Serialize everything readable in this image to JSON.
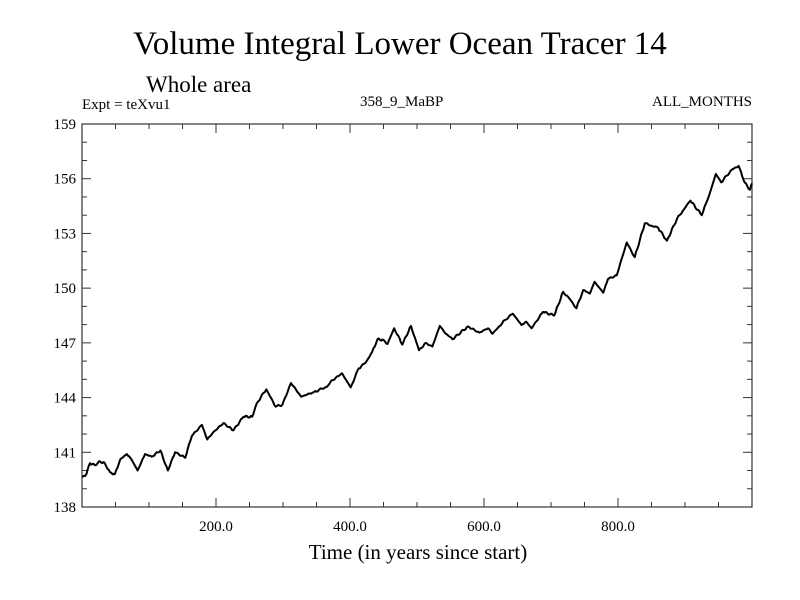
{
  "chart_data": {
    "type": "line",
    "title": "Volume Integral Lower Ocean Tracer 14",
    "subtitle": "Whole area",
    "annotations": {
      "left": "Expt = teXvu1",
      "center": "358_9_MaBP",
      "right": "ALL_MONTHS"
    },
    "xlabel": "Time (in years since start)",
    "ylabel": "",
    "xlim": [
      0,
      1000
    ],
    "ylim": [
      138,
      159
    ],
    "xticks": [
      200,
      400,
      600,
      800
    ],
    "xtick_labels": [
      "200.0",
      "400.0",
      "600.0",
      "800.0"
    ],
    "xminor_step": 50,
    "yticks": [
      138,
      141,
      144,
      147,
      150,
      153,
      156,
      159
    ],
    "ytick_labels": [
      "138",
      "141",
      "144",
      "147",
      "150",
      "153",
      "156",
      "159"
    ],
    "yminor_step": 1,
    "grid": false,
    "series": [
      {
        "name": "Lower Ocean Tracer 14",
        "color": "#000000",
        "x": [
          0,
          5,
          12,
          19,
          27,
          34,
          42,
          49,
          57,
          67,
          74,
          83,
          94,
          104,
          117,
          128,
          139,
          154,
          164,
          179,
          187,
          196,
          211,
          226,
          241,
          254,
          259,
          261,
          275,
          289,
          299,
          312,
          327,
          346,
          366,
          371,
          388,
          401,
          413,
          423,
          433,
          441,
          450,
          456,
          466,
          478,
          491,
          503,
          513,
          523,
          534,
          543,
          553,
          576,
          593,
          606,
          613,
          631,
          643,
          656,
          663,
          671,
          688,
          705,
          718,
          726,
          738,
          748,
          758,
          765,
          778,
          785,
          798,
          813,
          825,
          840,
          860,
          873,
          888,
          908,
          925,
          937,
          946,
          954,
          970,
          980,
          989,
          997,
          1000
        ],
        "y": [
          139.66,
          139.7,
          140.4,
          140.3,
          140.5,
          140.4,
          139.9,
          139.8,
          140.6,
          140.9,
          140.6,
          140.0,
          140.9,
          140.76,
          141.1,
          140.0,
          141.0,
          140.7,
          141.9,
          142.5,
          141.7,
          142.1,
          142.6,
          142.2,
          142.95,
          142.95,
          143.5,
          143.7,
          144.45,
          143.5,
          143.6,
          144.8,
          144.05,
          144.3,
          144.6,
          144.87,
          145.33,
          144.56,
          145.6,
          145.9,
          146.5,
          147.2,
          147.16,
          146.94,
          147.8,
          146.9,
          147.93,
          146.6,
          147.0,
          146.8,
          147.93,
          147.5,
          147.2,
          147.9,
          147.56,
          147.8,
          147.5,
          148.25,
          148.6,
          147.98,
          148.16,
          147.8,
          148.7,
          148.5,
          149.8,
          149.5,
          148.9,
          149.9,
          149.7,
          150.35,
          149.75,
          150.5,
          150.7,
          152.5,
          151.7,
          153.55,
          153.3,
          152.6,
          153.8,
          154.8,
          154.0,
          155.2,
          156.26,
          155.8,
          156.5,
          156.7,
          155.8,
          155.4,
          155.75
        ]
      }
    ],
    "legend": "none"
  }
}
